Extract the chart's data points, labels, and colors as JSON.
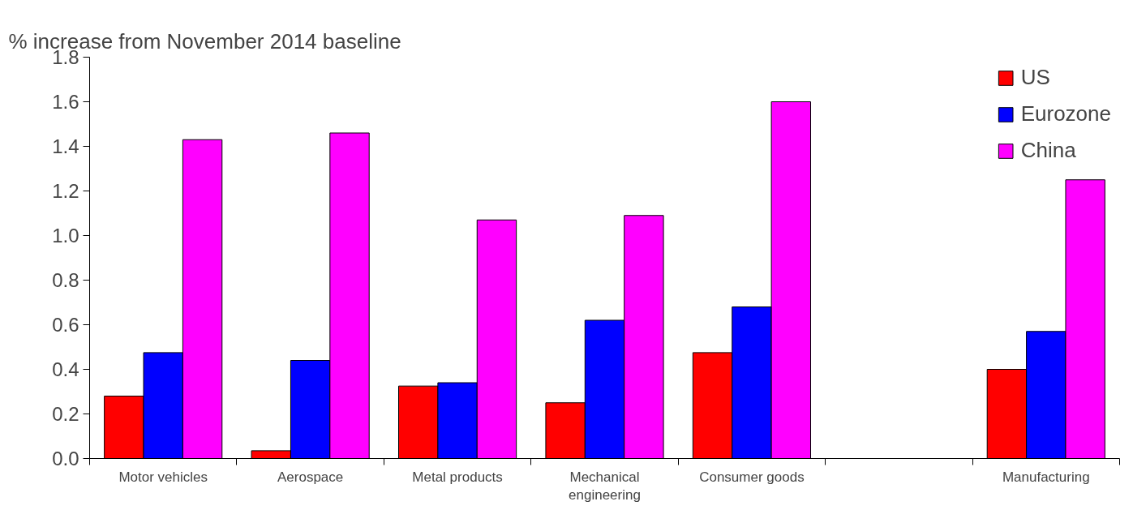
{
  "chart_data": {
    "type": "bar",
    "title": "% increase from November 2014 baseline",
    "categories": [
      "Motor vehicles",
      "Aerospace",
      "Metal products",
      "Mechanical engineering",
      "Consumer goods",
      null,
      "Manufacturing"
    ],
    "series": [
      {
        "name": "US",
        "color": "#ff0000",
        "values": [
          0.28,
          0.035,
          0.325,
          0.25,
          0.475,
          null,
          0.4
        ]
      },
      {
        "name": "Eurozone",
        "color": "#0000ff",
        "values": [
          0.475,
          0.44,
          0.34,
          0.62,
          0.68,
          null,
          0.57
        ]
      },
      {
        "name": "China",
        "color": "#ff00ff",
        "values": [
          1.43,
          1.46,
          1.07,
          1.09,
          1.6,
          null,
          1.25
        ]
      }
    ],
    "ylim": [
      0,
      1.8
    ],
    "yticks": [
      {
        "value": 0,
        "label": "0.0"
      },
      {
        "value": 0.2,
        "label": "0.2"
      },
      {
        "value": 0.4,
        "label": "0.4"
      },
      {
        "value": 0.6,
        "label": "0.6"
      },
      {
        "value": 0.8,
        "label": "0.8"
      },
      {
        "value": 1.0,
        "label": "1.0"
      },
      {
        "value": 1.2,
        "label": "1.2"
      },
      {
        "value": 1.4,
        "label": "1.4"
      },
      {
        "value": 1.6,
        "label": "1.6"
      },
      {
        "value": 1.8,
        "label": "1.8"
      }
    ],
    "legend": "top right",
    "grid": false
  }
}
